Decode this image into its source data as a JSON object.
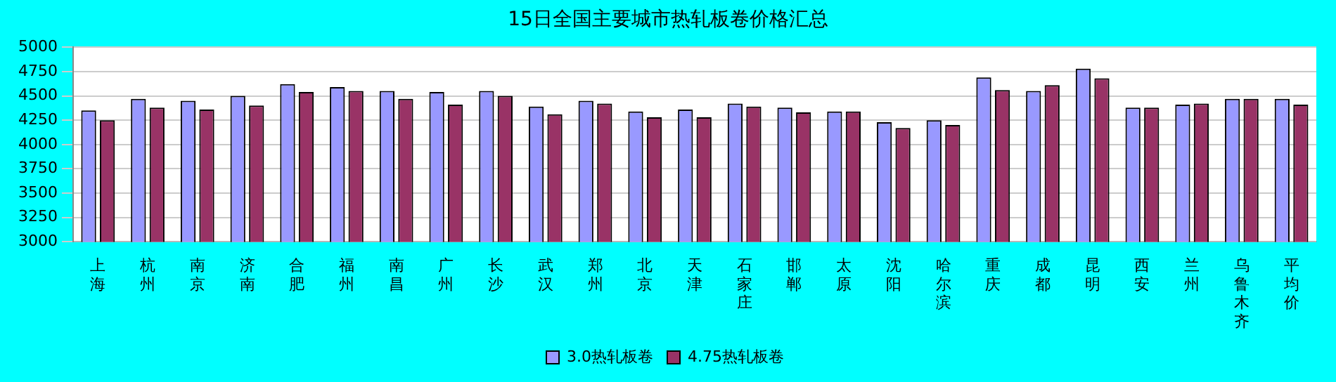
{
  "chart_data": {
    "type": "bar",
    "title": "15日全国主要城市热轧板卷价格汇总",
    "categories": [
      "上海",
      "杭州",
      "南京",
      "济南",
      "合肥",
      "福州",
      "南昌",
      "广州",
      "长沙",
      "武汉",
      "郑州",
      "北京",
      "天津",
      "石家庄",
      "邯郸",
      "太原",
      "沈阳",
      "哈尔滨",
      "重庆",
      "成都",
      "昆明",
      "西安",
      "兰州",
      "乌鲁木齐",
      "平均价"
    ],
    "series": [
      {
        "name": "3.0热轧板卷",
        "color": "#9999ff",
        "values": [
          4350,
          4470,
          4450,
          4500,
          4620,
          4590,
          4550,
          4540,
          4550,
          4390,
          4450,
          4340,
          4360,
          4420,
          4380,
          4340,
          4230,
          4250,
          4690,
          4550,
          4780,
          4380,
          4410,
          4470,
          4470
        ]
      },
      {
        "name": "4.75热轧板卷",
        "color": "#993366",
        "values": [
          4250,
          4380,
          4360,
          4400,
          4540,
          4550,
          4470,
          4410,
          4500,
          4310,
          4420,
          4280,
          4280,
          4390,
          4330,
          4340,
          4170,
          4200,
          4560,
          4610,
          4680,
          4380,
          4420,
          4470,
          4410
        ]
      }
    ],
    "ylim": [
      3000,
      5000
    ],
    "yticks": [
      3000,
      3250,
      3500,
      3750,
      4000,
      4250,
      4500,
      4750,
      5000
    ],
    "grid": "y",
    "legend": "bottom"
  }
}
